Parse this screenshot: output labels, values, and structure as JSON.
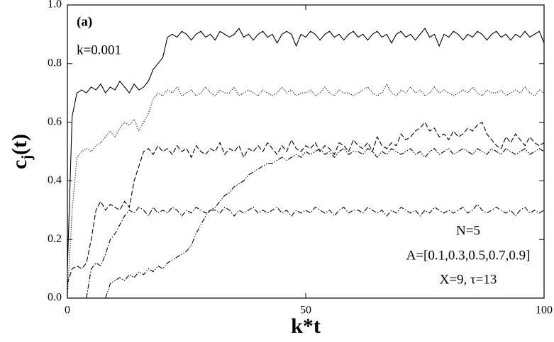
{
  "chart_data": {
    "type": "line",
    "annotations": [
      "(a)",
      "k=0.001",
      "N=5",
      "A=[0.1,0.3,0.5,0.7,0.9]",
      "X=9, τ=13"
    ],
    "xlabel": "k*t",
    "ylabel": [
      "c",
      "j",
      "(t)"
    ],
    "xlim": [
      0,
      100
    ],
    "xticks": [
      0,
      50,
      100
    ],
    "ylim": [
      0,
      1
    ],
    "yticks": [
      {
        "value": 0,
        "label": "0.0"
      },
      {
        "value": 0.2,
        "label": "0.2"
      },
      {
        "value": 0.4,
        "label": "0.4"
      },
      {
        "value": 0.6,
        "label": "0.6"
      },
      {
        "value": 0.8,
        "label": "0.8"
      },
      {
        "value": 1,
        "label": "1.0"
      }
    ],
    "x": [
      0,
      1,
      2,
      3,
      4,
      5,
      6,
      7,
      8,
      9,
      10,
      11,
      12,
      13,
      14,
      15,
      16,
      17,
      18,
      19,
      20,
      21,
      22,
      23,
      24,
      25,
      26,
      27,
      28,
      29,
      30,
      31,
      32,
      33,
      34,
      35,
      36,
      37,
      38,
      39,
      40,
      41,
      42,
      43,
      44,
      45,
      46,
      47,
      48,
      49,
      50,
      51,
      52,
      53,
      54,
      55,
      56,
      57,
      58,
      59,
      60,
      61,
      62,
      63,
      64,
      65,
      66,
      67,
      68,
      69,
      70,
      71,
      72,
      73,
      74,
      75,
      76,
      77,
      78,
      79,
      80,
      81,
      82,
      83,
      84,
      85,
      86,
      87,
      88,
      89,
      90,
      91,
      92,
      93,
      94,
      95,
      96,
      97,
      98,
      99,
      100
    ],
    "series": [
      {
        "color": "#000000",
        "style": "solid",
        "values": [
          0.1,
          0.62,
          0.7,
          0.71,
          0.7,
          0.72,
          0.71,
          0.73,
          0.7,
          0.72,
          0.71,
          0.74,
          0.72,
          0.7,
          0.73,
          0.71,
          0.72,
          0.74,
          0.78,
          0.8,
          0.82,
          0.89,
          0.9,
          0.89,
          0.91,
          0.9,
          0.88,
          0.9,
          0.91,
          0.89,
          0.9,
          0.88,
          0.91,
          0.9,
          0.89,
          0.9,
          0.92,
          0.89,
          0.9,
          0.88,
          0.9,
          0.91,
          0.89,
          0.9,
          0.87,
          0.9,
          0.91,
          0.9,
          0.86,
          0.9,
          0.89,
          0.91,
          0.9,
          0.88,
          0.9,
          0.91,
          0.89,
          0.9,
          0.88,
          0.9,
          0.91,
          0.89,
          0.9,
          0.88,
          0.9,
          0.91,
          0.89,
          0.9,
          0.87,
          0.9,
          0.91,
          0.89,
          0.9,
          0.88,
          0.9,
          0.92,
          0.89,
          0.9,
          0.86,
          0.9,
          0.89,
          0.91,
          0.9,
          0.88,
          0.9,
          0.89,
          0.91,
          0.9,
          0.88,
          0.9,
          0.91,
          0.89,
          0.9,
          0.88,
          0.9,
          0.89,
          0.91,
          0.89,
          0.9,
          0.91,
          0.87
        ]
      },
      {
        "color": "#000000",
        "style": "dotted",
        "values": [
          0.0,
          0.3,
          0.48,
          0.5,
          0.51,
          0.5,
          0.52,
          0.53,
          0.55,
          0.57,
          0.55,
          0.58,
          0.6,
          0.59,
          0.61,
          0.57,
          0.6,
          0.63,
          0.68,
          0.7,
          0.69,
          0.71,
          0.7,
          0.72,
          0.69,
          0.7,
          0.71,
          0.69,
          0.7,
          0.72,
          0.7,
          0.69,
          0.71,
          0.7,
          0.7,
          0.72,
          0.69,
          0.7,
          0.71,
          0.7,
          0.69,
          0.71,
          0.7,
          0.69,
          0.7,
          0.72,
          0.7,
          0.71,
          0.69,
          0.7,
          0.7,
          0.71,
          0.69,
          0.7,
          0.72,
          0.7,
          0.69,
          0.71,
          0.7,
          0.7,
          0.69,
          0.7,
          0.71,
          0.72,
          0.7,
          0.69,
          0.7,
          0.73,
          0.7,
          0.69,
          0.71,
          0.7,
          0.72,
          0.7,
          0.71,
          0.69,
          0.7,
          0.72,
          0.7,
          0.71,
          0.7,
          0.69,
          0.7,
          0.71,
          0.7,
          0.72,
          0.7,
          0.69,
          0.71,
          0.7,
          0.7,
          0.71,
          0.69,
          0.7,
          0.71,
          0.7,
          0.72,
          0.7,
          0.69,
          0.71,
          0.7
        ]
      },
      {
        "color": "#000000",
        "style": "dashed",
        "values": [
          0.05,
          0.1,
          0.11,
          0.1,
          0.12,
          0.2,
          0.3,
          0.33,
          0.3,
          0.32,
          0.31,
          0.3,
          0.33,
          0.31,
          0.4,
          0.45,
          0.5,
          0.51,
          0.49,
          0.52,
          0.5,
          0.51,
          0.49,
          0.52,
          0.5,
          0.51,
          0.48,
          0.52,
          0.5,
          0.49,
          0.51,
          0.5,
          0.53,
          0.49,
          0.51,
          0.5,
          0.52,
          0.48,
          0.51,
          0.5,
          0.52,
          0.5,
          0.53,
          0.51,
          0.49,
          0.52,
          0.5,
          0.54,
          0.51,
          0.5,
          0.52,
          0.51,
          0.53,
          0.5,
          0.52,
          0.51,
          0.49,
          0.53,
          0.52,
          0.5,
          0.54,
          0.52,
          0.51,
          0.53,
          0.5,
          0.55,
          0.52,
          0.51,
          0.53,
          0.52,
          0.56,
          0.54,
          0.55,
          0.57,
          0.58,
          0.6,
          0.57,
          0.58,
          0.55,
          0.56,
          0.54,
          0.57,
          0.55,
          0.56,
          0.58,
          0.57,
          0.59,
          0.6,
          0.56,
          0.54,
          0.52,
          0.51,
          0.55,
          0.53,
          0.56,
          0.54,
          0.52,
          0.55,
          0.53,
          0.52,
          0.53
        ]
      },
      {
        "color": "#000000",
        "style": "dashdot",
        "values": [
          null,
          null,
          null,
          null,
          0.0,
          0.1,
          0.12,
          0.11,
          0.15,
          0.2,
          0.22,
          0.25,
          0.28,
          0.3,
          0.29,
          0.31,
          0.3,
          0.28,
          0.31,
          0.29,
          0.3,
          0.29,
          0.31,
          0.3,
          0.28,
          0.3,
          0.29,
          0.31,
          0.3,
          0.29,
          0.3,
          0.3,
          0.29,
          0.31,
          0.3,
          0.28,
          0.3,
          0.29,
          0.3,
          0.31,
          0.29,
          0.3,
          0.29,
          0.3,
          0.31,
          0.29,
          0.3,
          0.28,
          0.3,
          0.29,
          0.3,
          0.29,
          0.31,
          0.3,
          0.29,
          0.3,
          0.28,
          0.3,
          0.31,
          0.29,
          0.3,
          0.3,
          0.29,
          0.31,
          0.3,
          0.29,
          0.3,
          0.28,
          0.3,
          0.29,
          0.31,
          0.3,
          0.29,
          0.3,
          0.28,
          0.3,
          0.29,
          0.31,
          0.3,
          0.29,
          0.3,
          0.29,
          0.3,
          0.31,
          0.29,
          0.3,
          0.32,
          0.3,
          0.29,
          0.3,
          0.31,
          0.3,
          0.29,
          0.3,
          0.28,
          0.3,
          0.31,
          0.29,
          0.3,
          0.29,
          0.3
        ]
      },
      {
        "color": "#000000",
        "style": "dashdotdot",
        "values": [
          null,
          null,
          null,
          null,
          null,
          null,
          null,
          null,
          0.0,
          0.05,
          0.06,
          0.07,
          0.06,
          0.08,
          0.07,
          0.09,
          0.08,
          0.1,
          0.09,
          0.11,
          0.1,
          0.12,
          0.13,
          0.14,
          0.15,
          0.16,
          0.18,
          0.22,
          0.25,
          0.28,
          0.3,
          0.31,
          0.33,
          0.35,
          0.36,
          0.38,
          0.39,
          0.4,
          0.42,
          0.43,
          0.44,
          0.45,
          0.46,
          0.46,
          0.47,
          0.48,
          0.47,
          0.48,
          0.49,
          0.48,
          0.5,
          0.49,
          0.5,
          0.51,
          0.49,
          0.5,
          0.48,
          0.5,
          0.51,
          0.49,
          0.5,
          0.5,
          0.49,
          0.51,
          0.5,
          0.48,
          0.5,
          0.49,
          0.51,
          0.5,
          0.49,
          0.5,
          0.51,
          0.49,
          0.5,
          0.48,
          0.5,
          0.51,
          0.49,
          0.5,
          0.51,
          0.49,
          0.5,
          0.51,
          0.5,
          0.49,
          0.51,
          0.5,
          0.49,
          0.51,
          0.5,
          0.49,
          0.51,
          0.5,
          0.49,
          0.5,
          0.51,
          0.49,
          0.5,
          0.51,
          0.5
        ]
      }
    ]
  }
}
